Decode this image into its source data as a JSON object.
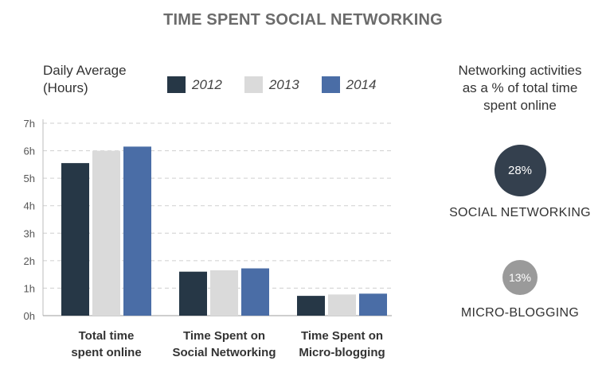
{
  "colors": {
    "2012": "#263746",
    "2013": "#dadada",
    "2014": "#4a6da6"
  },
  "chart_data": {
    "type": "bar",
    "title": "TIME SPENT SOCIAL NETWORKING",
    "ylabel": "Daily Average (Hours)",
    "ylabel_lines": [
      "Daily Average",
      "(Hours)"
    ],
    "categories": [
      "Total time spent online",
      "Time Spent on Social Networking",
      "Time Spent on Micro-blogging"
    ],
    "category_lines": [
      [
        "Total time",
        "spent online"
      ],
      [
        "Time Spent on",
        "Social Networking"
      ],
      [
        "Time Spent on",
        "Micro-blogging"
      ]
    ],
    "series": [
      {
        "name": "2012",
        "values": [
          5.55,
          1.6,
          0.72
        ]
      },
      {
        "name": "2013",
        "values": [
          6.0,
          1.65,
          0.77
        ]
      },
      {
        "name": "2014",
        "values": [
          6.15,
          1.72,
          0.8
        ]
      }
    ],
    "ylim": [
      0,
      7
    ],
    "yticks": [
      0,
      1,
      2,
      3,
      4,
      5,
      6,
      7
    ],
    "ytick_labels": [
      "0h",
      "1h",
      "2h",
      "3h",
      "4h",
      "5h",
      "6h",
      "7h"
    ],
    "grid": true,
    "legend_position": "top"
  },
  "side_panel": {
    "title_lines": [
      "Networking activities",
      "as a % of total time",
      "spent online"
    ],
    "stats": [
      {
        "label": "SOCIAL NETWORKING",
        "value": "28%",
        "percent": 28,
        "color": "#34404e"
      },
      {
        "label": "MICRO-BLOGGING",
        "value": "13%",
        "percent": 13,
        "color": "#9a9a9a"
      }
    ]
  }
}
